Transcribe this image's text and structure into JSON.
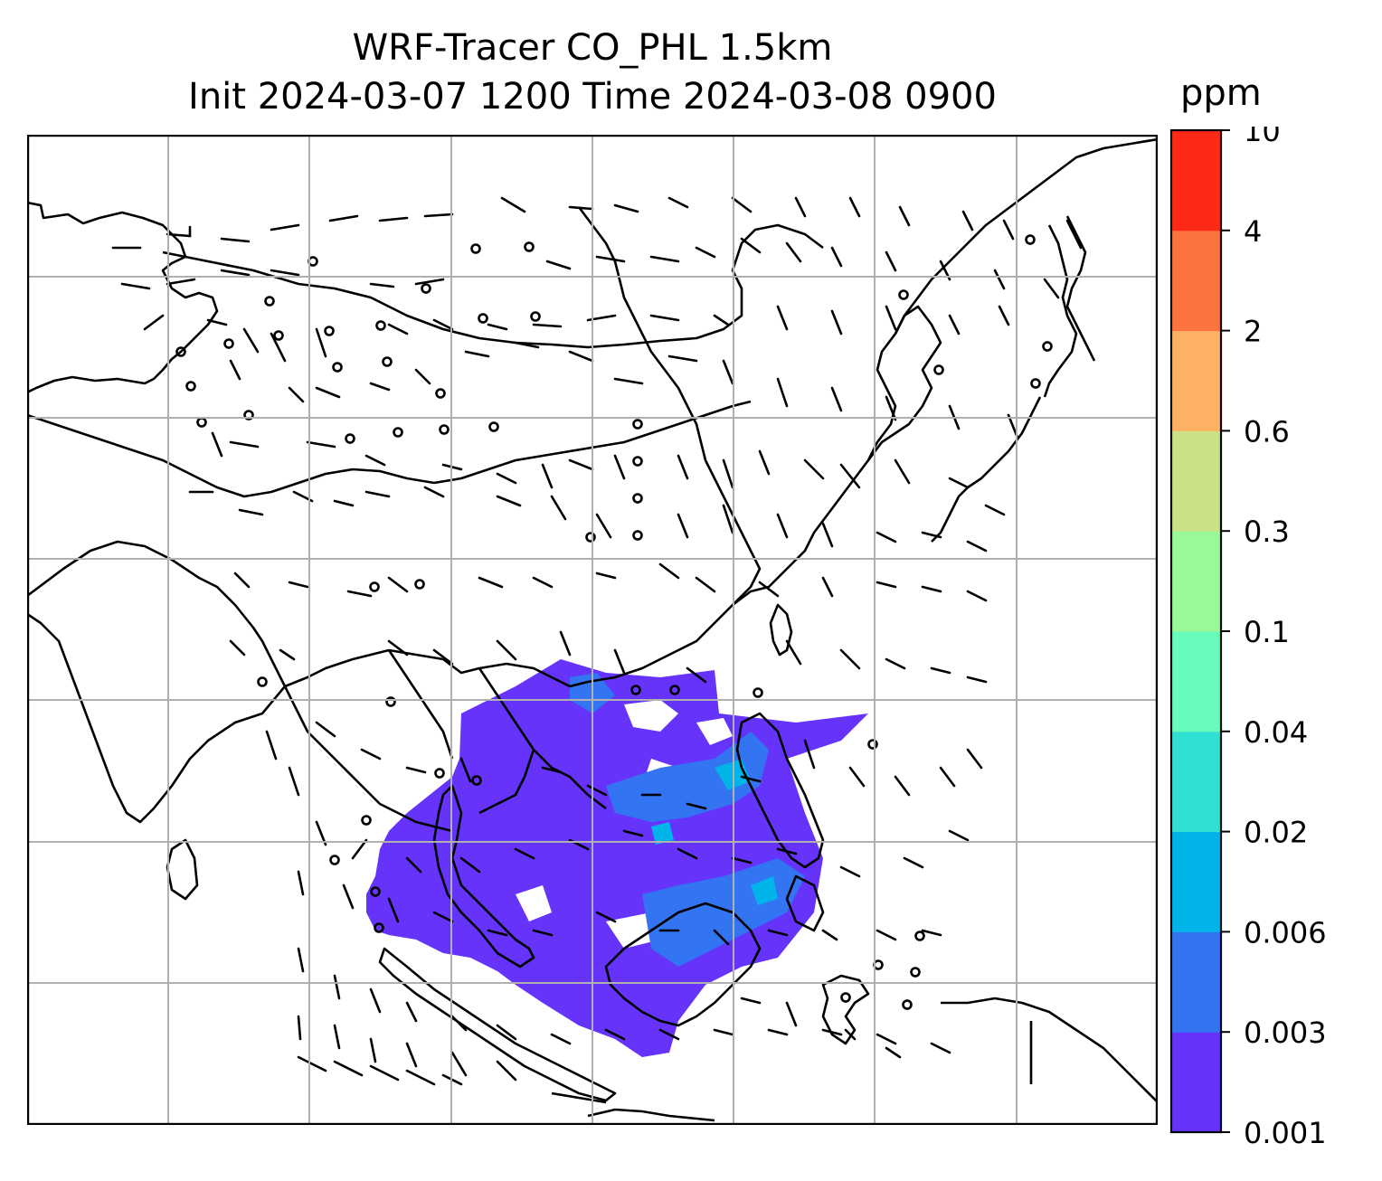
{
  "title": {
    "line1": "WRF-Tracer CO_PHL 1.5km",
    "line2": "Init 2024-03-07 1200 Time 2024-03-08 0900"
  },
  "colorbar": {
    "unit": "ppm",
    "levels": [
      "0.001",
      "0.003",
      "0.006",
      "0.02",
      "0.04",
      "0.1",
      "0.3",
      "0.6",
      "2",
      "4",
      "10"
    ],
    "colors": [
      "#6533fa",
      "#3374f2",
      "#00b4ea",
      "#2fe0d3",
      "#68fbbb",
      "#99f998",
      "#cbe186",
      "#fdb162",
      "#fd7340",
      "#fe2a17"
    ]
  },
  "map": {
    "grid": "on",
    "plume_levels": {
      "outer": "0.001",
      "middle": "0.003",
      "inner": "0.006"
    }
  }
}
